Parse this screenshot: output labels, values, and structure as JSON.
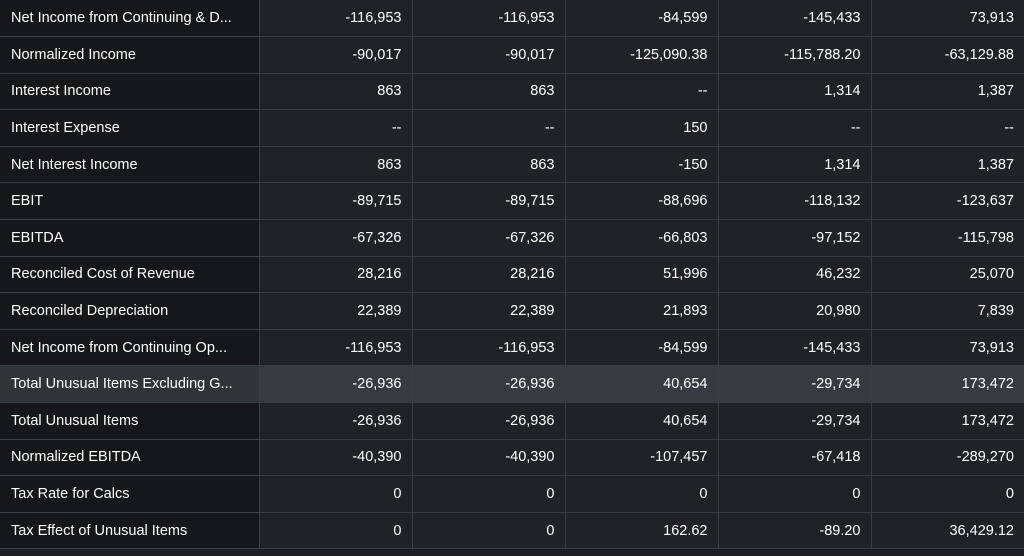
{
  "table": {
    "rows": [
      {
        "label": "Net Income from Continuing & D...",
        "values": [
          "-116,953",
          "-116,953",
          "-84,599",
          "-145,433",
          "73,913"
        ]
      },
      {
        "label": "Normalized Income",
        "values": [
          "-90,017",
          "-90,017",
          "-125,090.38",
          "-115,788.20",
          "-63,129.88"
        ]
      },
      {
        "label": "Interest Income",
        "values": [
          "863",
          "863",
          "--",
          "1,314",
          "1,387"
        ]
      },
      {
        "label": "Interest Expense",
        "values": [
          "--",
          "--",
          "150",
          "--",
          "--"
        ]
      },
      {
        "label": "Net Interest Income",
        "values": [
          "863",
          "863",
          "-150",
          "1,314",
          "1,387"
        ]
      },
      {
        "label": "EBIT",
        "values": [
          "-89,715",
          "-89,715",
          "-88,696",
          "-118,132",
          "-123,637"
        ]
      },
      {
        "label": "EBITDA",
        "values": [
          "-67,326",
          "-67,326",
          "-66,803",
          "-97,152",
          "-115,798"
        ]
      },
      {
        "label": "Reconciled Cost of Revenue",
        "values": [
          "28,216",
          "28,216",
          "51,996",
          "46,232",
          "25,070"
        ]
      },
      {
        "label": "Reconciled Depreciation",
        "values": [
          "22,389",
          "22,389",
          "21,893",
          "20,980",
          "7,839"
        ]
      },
      {
        "label": "Net Income from Continuing Op...",
        "values": [
          "-116,953",
          "-116,953",
          "-84,599",
          "-145,433",
          "73,913"
        ]
      },
      {
        "label": "Total Unusual Items Excluding G...",
        "values": [
          "-26,936",
          "-26,936",
          "40,654",
          "-29,734",
          "173,472"
        ],
        "highlighted": true
      },
      {
        "label": "Total Unusual Items",
        "values": [
          "-26,936",
          "-26,936",
          "40,654",
          "-29,734",
          "173,472"
        ]
      },
      {
        "label": "Normalized EBITDA",
        "values": [
          "-40,390",
          "-40,390",
          "-107,457",
          "-67,418",
          "-289,270"
        ]
      },
      {
        "label": "Tax Rate for Calcs",
        "values": [
          "0",
          "0",
          "0",
          "0",
          "0"
        ]
      },
      {
        "label": "Tax Effect of Unusual Items",
        "values": [
          "0",
          "0",
          "162.62",
          "-89.20",
          "36,429.12"
        ]
      }
    ]
  },
  "colors": {
    "background": "#1b1e22",
    "label_cell": "#15171a",
    "value_cell": "#1f2226",
    "highlight_row": "#363b41",
    "grid_line": "#3a3e43",
    "text": "#ffffff"
  }
}
